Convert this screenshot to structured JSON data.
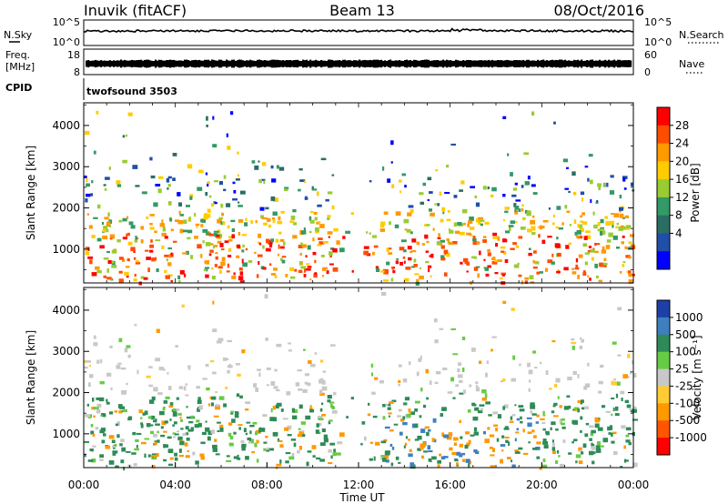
{
  "header": {
    "station": "Inuvik (fitACF)",
    "beam": "Beam 13",
    "date": "08/Oct/2016"
  },
  "top_panels": {
    "nsky_label": "N.Sky",
    "nsky_ticks": [
      "10^5",
      "10^0"
    ],
    "nsearch_label": "N.Search",
    "nsearch_ticks": [
      "10^5",
      "10^0"
    ],
    "freq_label": "Freq.",
    "freq_unit": "[MHz]",
    "freq_ticks": [
      "18",
      "8"
    ],
    "nave_label": "Nave",
    "nave_ticks": [
      "60",
      "0"
    ],
    "cpid_label": "CPID",
    "cpid_value": "twofsound 3503"
  },
  "chart_data": [
    {
      "type": "heatmap",
      "name": "power",
      "x_range_hours": [
        0,
        24
      ],
      "ylabel": "Slant Range [km]",
      "yticks": [
        1000,
        2000,
        3000,
        4000
      ],
      "yticks_text": [
        "1000",
        "2000",
        "3000",
        "4000"
      ],
      "ylim": [
        180,
        4550
      ],
      "colorbar_label": "Power [dB]",
      "colorbar_ticks": [
        "28",
        "24",
        "20",
        "16",
        "12",
        "8",
        "4"
      ],
      "colorbar_colors": [
        "#ff0000",
        "#ff4d00",
        "#ff9900",
        "#ffcc00",
        "#99cc33",
        "#339966",
        "#2a6e63",
        "#1f4fa8",
        "#0000ff"
      ]
    },
    {
      "type": "heatmap",
      "name": "velocity",
      "x_range_hours": [
        0,
        24
      ],
      "ylabel": "Slant Range [km]",
      "yticks": [
        1000,
        2000,
        3000,
        4000
      ],
      "yticks_text": [
        "1000",
        "2000",
        "3000",
        "4000"
      ],
      "ylim": [
        180,
        4550
      ],
      "colorbar_label": "Velocity [m s⁻¹]",
      "colorbar_ticks": [
        "1000",
        "500",
        "100",
        "25",
        "-25",
        "-100",
        "-500",
        "-1000"
      ],
      "colorbar_colors": [
        "#1f3fa8",
        "#3f7fc0",
        "#2e8b57",
        "#66cc44",
        "#c8c8c8",
        "#ffcc33",
        "#ff9900",
        "#ff5500",
        "#ff0000"
      ]
    }
  ],
  "x_axis": {
    "label": "Time UT",
    "ticks": [
      "00:00",
      "04:00",
      "08:00",
      "12:00",
      "16:00",
      "20:00",
      "00:00"
    ]
  }
}
